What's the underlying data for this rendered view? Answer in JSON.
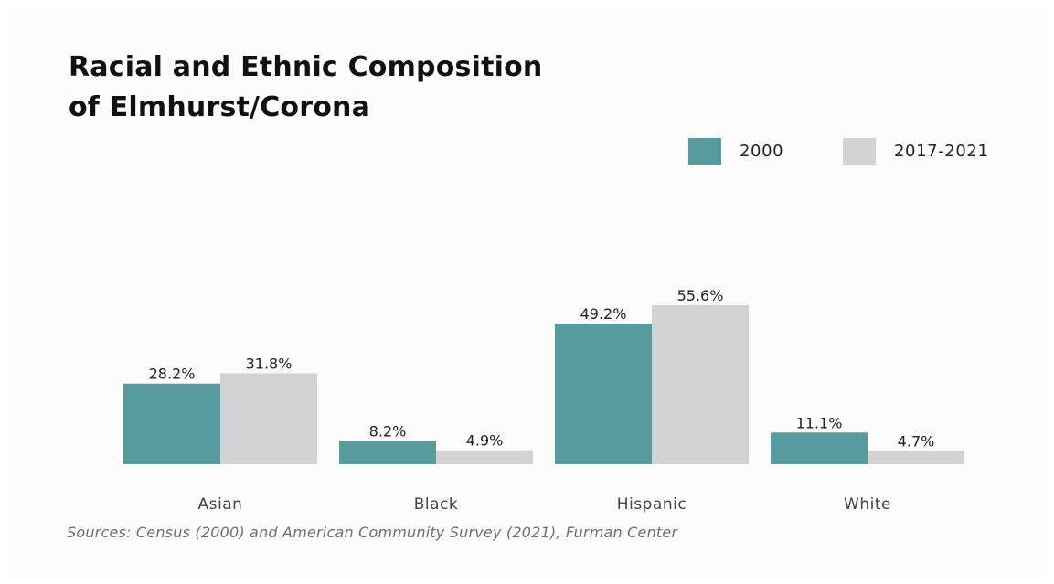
{
  "title_lines": [
    "Racial and Ethnic Composition",
    "of Elmhurst/Corona"
  ],
  "source": "Sources: Census (2000) and American Community Survey (2021), Furman Center",
  "colors": {
    "series_2000": "#569c9e",
    "series_2017_2021": "#d3d3d3",
    "value_label": "#222222",
    "category_label": "#444444"
  },
  "chart_data": {
    "type": "bar",
    "title": "Racial and Ethnic Composition of Elmhurst/Corona",
    "categories": [
      "Asian",
      "Black",
      "Hispanic",
      "White"
    ],
    "series": [
      {
        "name": "2000",
        "values": [
          28.2,
          8.2,
          49.2,
          11.1
        ],
        "labels": [
          "28.2%",
          "8.2%",
          "49.2%",
          "11.1%"
        ]
      },
      {
        "name": "2017-2021",
        "values": [
          31.8,
          4.9,
          55.6,
          4.7
        ],
        "labels": [
          "31.8%",
          "4.9%",
          "55.6%",
          "4.7%"
        ]
      }
    ],
    "ylim": [
      0,
      55.6
    ],
    "legend": "top-right",
    "grid": false,
    "xlabel": "",
    "ylabel": ""
  }
}
